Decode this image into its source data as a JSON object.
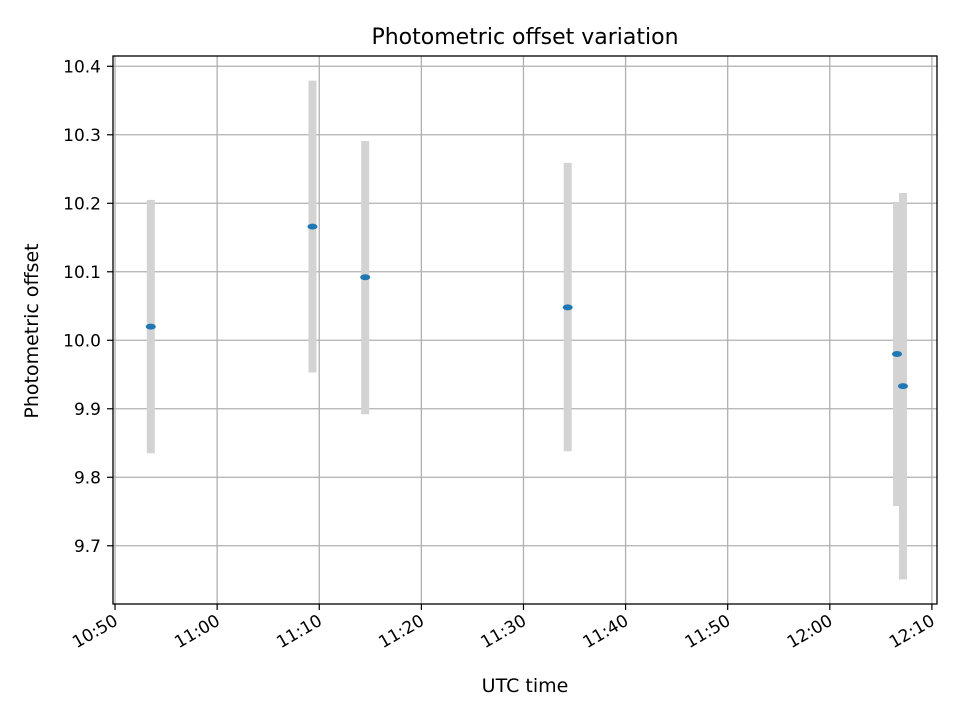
{
  "chart_data": {
    "type": "scatter",
    "title": "Photometric offset variation",
    "xlabel": "UTC time",
    "ylabel": "Photometric offset",
    "x_tick_labels": [
      "10:50",
      "11:00",
      "11:10",
      "11:20",
      "11:30",
      "11:40",
      "11:50",
      "12:00",
      "12:10"
    ],
    "x_tick_minutes": [
      650,
      660,
      670,
      680,
      690,
      700,
      710,
      720,
      730
    ],
    "xlim_minutes": [
      649.8,
      730.5
    ],
    "y_ticks": [
      9.7,
      9.8,
      9.9,
      10.0,
      10.1,
      10.2,
      10.3,
      10.4
    ],
    "y_tick_labels": [
      "9.7",
      "9.8",
      "9.9",
      "10.0",
      "10.1",
      "10.2",
      "10.3",
      "10.4"
    ],
    "ylim": [
      9.615,
      10.415
    ],
    "grid": true,
    "points": [
      {
        "x": "10:53:30",
        "y": 10.02,
        "low": 9.835,
        "high": 10.205
      },
      {
        "x": "11:09:20",
        "y": 10.166,
        "low": 9.953,
        "high": 10.379
      },
      {
        "x": "11:14:30",
        "y": 10.092,
        "low": 9.892,
        "high": 10.291
      },
      {
        "x": "11:34:20",
        "y": 10.048,
        "low": 9.838,
        "high": 10.259
      },
      {
        "x": "12:06:35",
        "y": 9.98,
        "low": 9.758,
        "high": 10.202
      },
      {
        "x": "12:07:10",
        "y": 9.933,
        "low": 9.651,
        "high": 10.215
      }
    ],
    "colors": {
      "point": "#1f77b4",
      "errorbar": "#d3d3d3",
      "grid": "#b0b0b0"
    }
  }
}
